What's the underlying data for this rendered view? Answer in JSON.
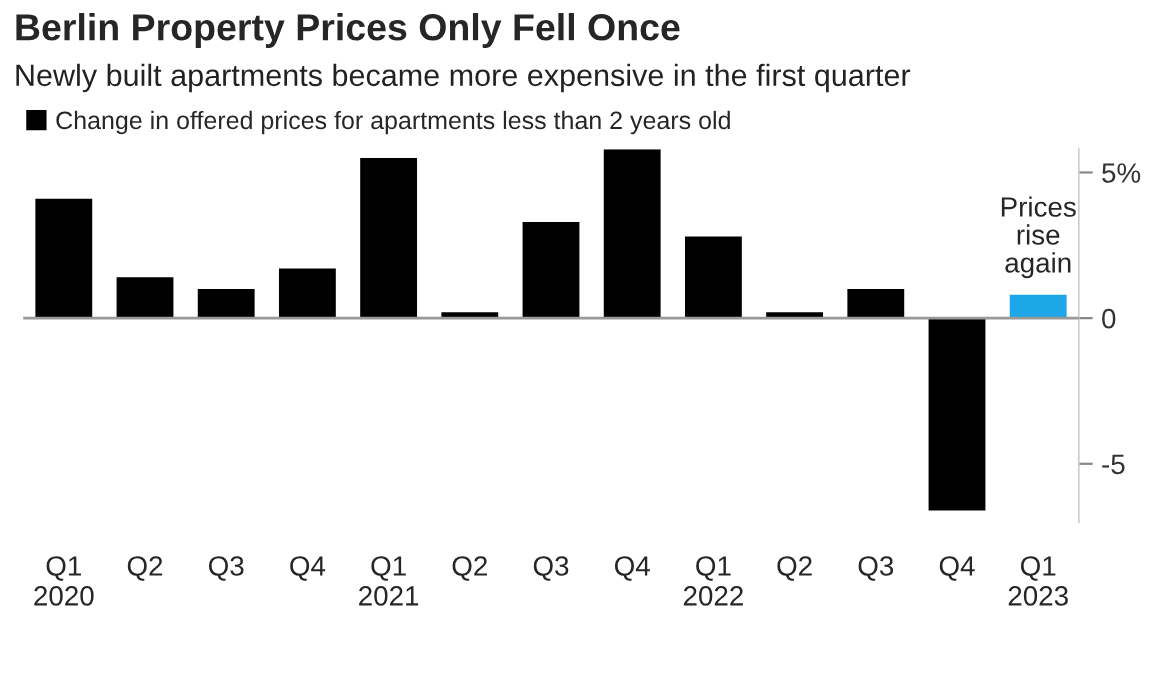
{
  "chart_data": {
    "type": "bar",
    "title": "Berlin Property Prices Only Fell Once",
    "subtitle": "Newly built apartments became more expensive in the first quarter",
    "categories": [
      "Q1\n2020",
      "Q2",
      "Q3",
      "Q4",
      "Q1\n2021",
      "Q2",
      "Q3",
      "Q4",
      "Q1\n2022",
      "Q2",
      "Q3",
      "Q4",
      "Q1\n2023"
    ],
    "series": [
      {
        "name": "Change in offered prices for apartments less than 2 years old",
        "color": "#000000",
        "colors": [
          "#000000",
          "#000000",
          "#000000",
          "#000000",
          "#000000",
          "#000000",
          "#000000",
          "#000000",
          "#000000",
          "#000000",
          "#000000",
          "#000000",
          "#1ea7e8"
        ],
        "values": [
          4.1,
          1.4,
          1.0,
          1.7,
          5.5,
          0.2,
          3.3,
          5.8,
          2.8,
          0.2,
          1.0,
          -6.6,
          0.8
        ]
      }
    ],
    "annotations": [
      {
        "text": "Prices\nrise\nagain",
        "x": "Q1\n2023",
        "y": 0.8
      }
    ],
    "ylim": [
      -7,
      5.8
    ],
    "yticks": [
      {
        "value": 5,
        "label": "5%"
      },
      0,
      -5
    ],
    "ref_lines": [
      {
        "axis": "y",
        "value": 0,
        "color": "#999999"
      }
    ],
    "grid": false,
    "legend": "top left"
  }
}
